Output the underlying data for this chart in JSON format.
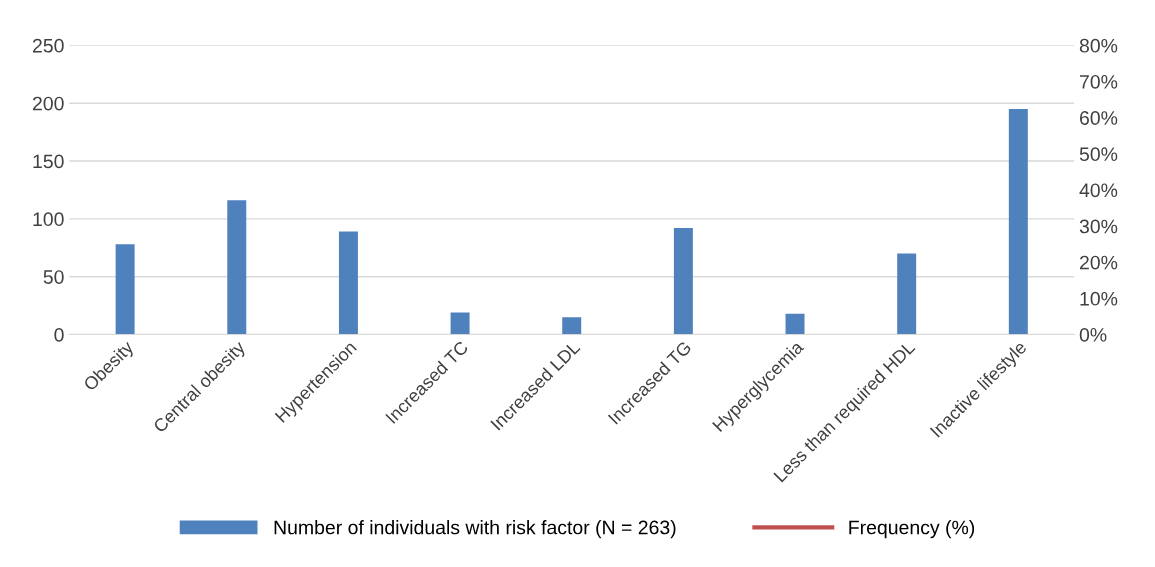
{
  "chart_data": {
    "type": "bar",
    "categories": [
      "Obesity",
      "Central obesity",
      "Hypertension",
      "Increased TC",
      "Increased LDL",
      "Increased TG",
      "Hyperglycemia",
      "Less than required HDL",
      "Inactive lifestyle"
    ],
    "series": [
      {
        "name": "Number of individuals with risk factor (N = 263)",
        "color": "#4f81bd",
        "values": [
          78,
          116,
          89,
          19,
          15,
          92,
          18,
          70,
          195
        ]
      },
      {
        "name": "Frequency (%)",
        "type": "line",
        "color": "#c0504d",
        "values": [
          null,
          null,
          null,
          null,
          null,
          null,
          null,
          null,
          null
        ]
      }
    ],
    "ylim": [
      0,
      250
    ],
    "yticks": [
      0,
      50,
      100,
      150,
      200,
      250
    ],
    "y2lim": [
      0,
      80
    ],
    "y2ticks": [
      {
        "value": 0,
        "label": "0%"
      },
      {
        "value": 10,
        "label": "10%"
      },
      {
        "value": 20,
        "label": "20%"
      },
      {
        "value": 30,
        "label": "30%"
      },
      {
        "value": 40,
        "label": "40%"
      },
      {
        "value": 50,
        "label": "50%"
      },
      {
        "value": 60,
        "label": "60%"
      },
      {
        "value": 70,
        "label": "70%"
      },
      {
        "value": 80,
        "label": "80%"
      }
    ],
    "grid": "y",
    "legend": "bottom"
  }
}
